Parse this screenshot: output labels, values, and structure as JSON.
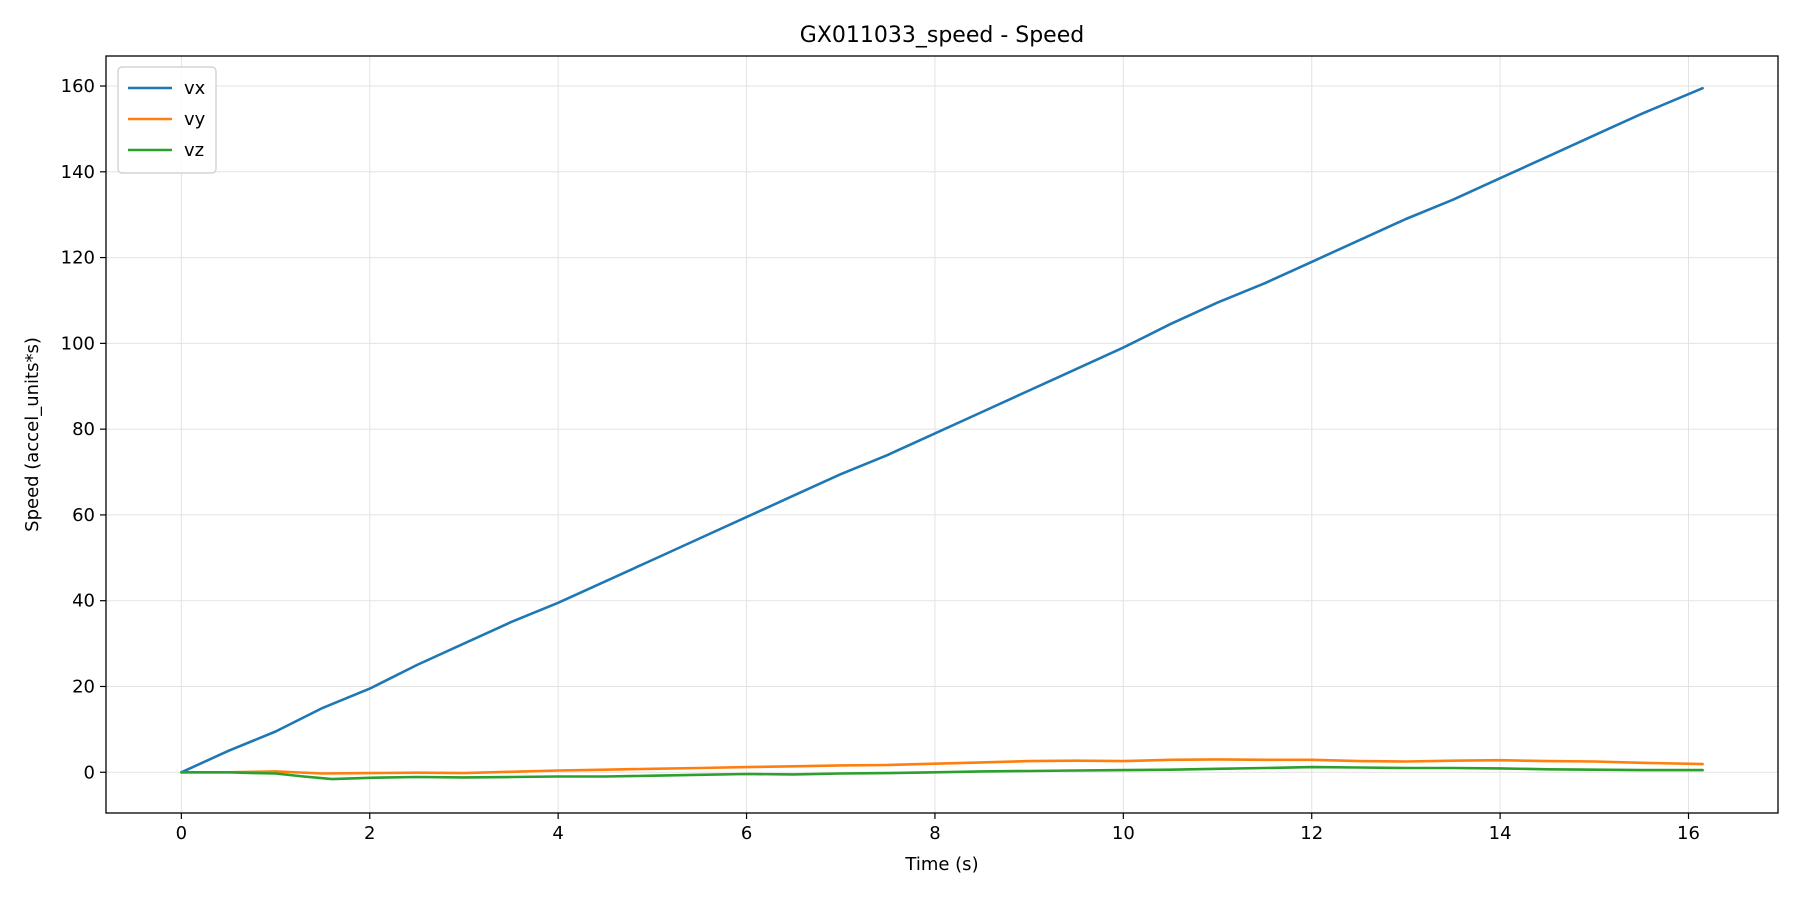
{
  "chart_data": {
    "type": "line",
    "title": "GX011033_speed - Speed",
    "xlabel": "Time (s)",
    "ylabel": "Speed (accel_units*s)",
    "xlim": [
      -0.8,
      16.95
    ],
    "ylim": [
      -9.5,
      167
    ],
    "xticks": [
      0,
      2,
      4,
      6,
      8,
      10,
      12,
      14,
      16
    ],
    "yticks": [
      0,
      20,
      40,
      60,
      80,
      100,
      120,
      140,
      160
    ],
    "grid": true,
    "legend_position": "top-left",
    "series": [
      {
        "name": "vx",
        "color": "#1f77b4",
        "points": [
          [
            0,
            0
          ],
          [
            0.5,
            5
          ],
          [
            1,
            9.5
          ],
          [
            1.5,
            15
          ],
          [
            2,
            19.5
          ],
          [
            2.5,
            25
          ],
          [
            3,
            30
          ],
          [
            3.5,
            35
          ],
          [
            4,
            39.5
          ],
          [
            4.5,
            44.5
          ],
          [
            5,
            49.5
          ],
          [
            5.5,
            54.5
          ],
          [
            6,
            59.5
          ],
          [
            6.5,
            64.5
          ],
          [
            7,
            69.5
          ],
          [
            7.5,
            74
          ],
          [
            8,
            79
          ],
          [
            8.5,
            84
          ],
          [
            9,
            89
          ],
          [
            9.5,
            94
          ],
          [
            10,
            99
          ],
          [
            10.5,
            104.5
          ],
          [
            11,
            109.5
          ],
          [
            11.5,
            114
          ],
          [
            12,
            119
          ],
          [
            12.5,
            124
          ],
          [
            13,
            129
          ],
          [
            13.5,
            133.5
          ],
          [
            14,
            138.5
          ],
          [
            14.5,
            143.5
          ],
          [
            15,
            148.5
          ],
          [
            15.5,
            153.5
          ],
          [
            16.15,
            159.5
          ]
        ]
      },
      {
        "name": "vy",
        "color": "#ff7f0e",
        "points": [
          [
            0,
            0
          ],
          [
            0.5,
            0
          ],
          [
            1,
            0.2
          ],
          [
            1.5,
            -0.3
          ],
          [
            2,
            -0.2
          ],
          [
            2.5,
            -0.1
          ],
          [
            3,
            -0.2
          ],
          [
            3.5,
            0.1
          ],
          [
            4,
            0.4
          ],
          [
            4.5,
            0.6
          ],
          [
            5,
            0.8
          ],
          [
            5.5,
            1
          ],
          [
            6,
            1.2
          ],
          [
            6.5,
            1.4
          ],
          [
            7,
            1.6
          ],
          [
            7.5,
            1.7
          ],
          [
            8,
            2
          ],
          [
            8.5,
            2.3
          ],
          [
            9,
            2.6
          ],
          [
            9.5,
            2.7
          ],
          [
            10,
            2.6
          ],
          [
            10.5,
            2.9
          ],
          [
            11,
            3
          ],
          [
            11.5,
            2.9
          ],
          [
            12,
            2.9
          ],
          [
            12.5,
            2.6
          ],
          [
            13,
            2.5
          ],
          [
            13.5,
            2.7
          ],
          [
            14,
            2.8
          ],
          [
            14.5,
            2.6
          ],
          [
            15,
            2.5
          ],
          [
            15.5,
            2.2
          ],
          [
            16.15,
            1.9
          ]
        ]
      },
      {
        "name": "vz",
        "color": "#2ca02c",
        "points": [
          [
            0,
            0
          ],
          [
            0.5,
            0
          ],
          [
            0.8,
            -0.2
          ],
          [
            1,
            -0.3
          ],
          [
            1.3,
            -1
          ],
          [
            1.6,
            -1.6
          ],
          [
            2,
            -1.3
          ],
          [
            2.5,
            -1.1
          ],
          [
            3,
            -1.2
          ],
          [
            3.5,
            -1.1
          ],
          [
            4,
            -1
          ],
          [
            4.5,
            -1
          ],
          [
            5,
            -0.8
          ],
          [
            5.5,
            -0.6
          ],
          [
            6,
            -0.4
          ],
          [
            6.5,
            -0.5
          ],
          [
            7,
            -0.3
          ],
          [
            7.5,
            -0.2
          ],
          [
            8,
            0
          ],
          [
            8.5,
            0.2
          ],
          [
            9,
            0.3
          ],
          [
            9.5,
            0.4
          ],
          [
            10,
            0.5
          ],
          [
            10.5,
            0.6
          ],
          [
            11,
            0.8
          ],
          [
            11.5,
            1
          ],
          [
            12,
            1.2
          ],
          [
            12.5,
            1.1
          ],
          [
            13,
            1
          ],
          [
            13.5,
            1
          ],
          [
            14,
            0.9
          ],
          [
            14.5,
            0.7
          ],
          [
            15,
            0.6
          ],
          [
            15.5,
            0.5
          ],
          [
            16.15,
            0.5
          ]
        ]
      }
    ]
  }
}
